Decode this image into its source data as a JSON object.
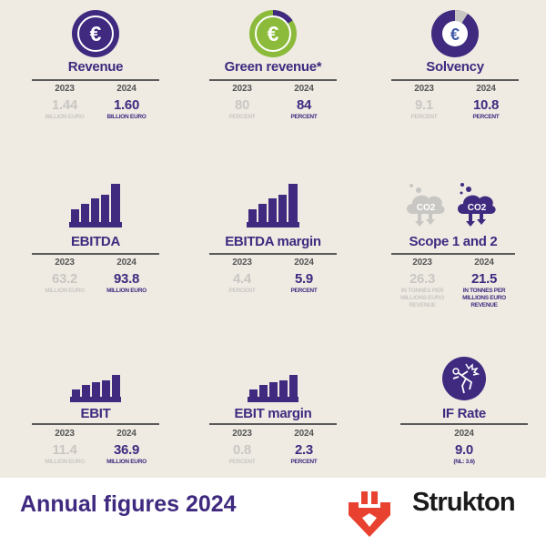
{
  "colors": {
    "accent": "#3f2a7f",
    "green": "#8cbb3c",
    "muted": "#c9c7c3",
    "logo": "#e8412f",
    "background": "#efebe3"
  },
  "kpis": [
    {
      "title": "Revenue",
      "icon": "euro-coin-icon",
      "y2023": "2023",
      "v2023": "1.44",
      "u2023": "BILLION EURO",
      "y2024": "2024",
      "v2024": "1.60",
      "u2024": "BILLION EURO"
    },
    {
      "title": "Green revenue*",
      "icon": "euro-donut-icon",
      "share_percent": 84,
      "y2023": "2023",
      "v2023": "80",
      "u2023": "PERCENT",
      "y2024": "2024",
      "v2024": "84",
      "u2024": "PERCENT"
    },
    {
      "title": "Solvency",
      "icon": "euro-donut-icon",
      "y2023": "2023",
      "v2023": "9.1",
      "u2023": "PERCENT",
      "y2024": "2024",
      "v2024": "10.8",
      "u2024": "PERCENT"
    },
    {
      "title": "EBITDA",
      "icon": "bar-chart-icon",
      "y2023": "2023",
      "v2023": "63.2",
      "u2023": "MILLION EURO",
      "y2024": "2024",
      "v2024": "93.8",
      "u2024": "MILLION EURO"
    },
    {
      "title": "EBITDA margin",
      "icon": "bar-chart-icon",
      "y2023": "2023",
      "v2023": "4.4",
      "u2023": "PERCENT",
      "y2024": "2024",
      "v2024": "5.9",
      "u2024": "PERCENT"
    },
    {
      "title": "Scope 1 and 2",
      "icon": "co2-cloud-icon",
      "co2_label": "CO2",
      "y2023": "2023",
      "v2023": "26.3",
      "u2023": "IN TONNES PER MILLIONS EURO REVENUE",
      "y2024": "2024",
      "v2024": "21.5",
      "u2024": "IN TONNES PER MILLIONS EURO REVENUE"
    },
    {
      "title": "EBIT",
      "icon": "bar-chart-icon",
      "y2023": "2023",
      "v2023": "11.4",
      "u2023": "MILLION EURO",
      "y2024": "2024",
      "v2024": "36.9",
      "u2024": "MILLION EURO"
    },
    {
      "title": "EBIT margin",
      "icon": "bar-chart-icon",
      "y2023": "2023",
      "v2023": "0.8",
      "u2023": "PERCENT",
      "y2024": "2024",
      "v2024": "2.3",
      "u2024": "PERCENT"
    },
    {
      "title": "IF Rate",
      "icon": "injury-icon",
      "y2024": "2024",
      "v2024": "9.0",
      "u2024": "(NL: 3.6)"
    }
  ],
  "footer": {
    "title": "Annual figures 2024",
    "brand": "Strukton"
  }
}
